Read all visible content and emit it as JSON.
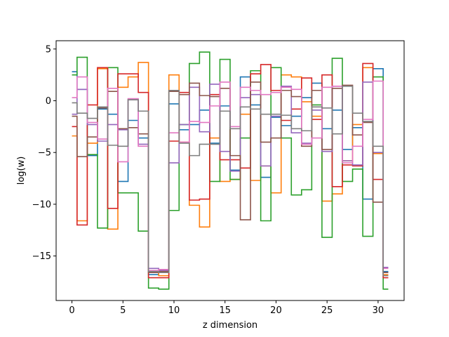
{
  "chart_data": {
    "type": "line",
    "drawstyle": "steps-mid",
    "title": "",
    "xlabel": "z dimension",
    "ylabel": "log(w)",
    "xlim": [
      -1.55,
      32.55
    ],
    "ylim": [
      -19.3,
      5.8
    ],
    "xticks": [
      0,
      5,
      10,
      15,
      20,
      25,
      30
    ],
    "yticks": [
      -15,
      -10,
      -5,
      0,
      5
    ],
    "grid": false,
    "legend": "none",
    "x": [
      0,
      1,
      2,
      3,
      4,
      5,
      6,
      7,
      8,
      9,
      10,
      11,
      12,
      13,
      14,
      15,
      16,
      17,
      18,
      19,
      20,
      21,
      22,
      23,
      24,
      25,
      26,
      27,
      28,
      29,
      30,
      31
    ],
    "series": [
      {
        "color": "#1f77b4",
        "values": [
          2.8,
          1.1,
          -5.3,
          -0.8,
          -1.3,
          -7.8,
          -1.9,
          -3.6,
          -16.8,
          -16.6,
          -0.3,
          -2.8,
          -2.3,
          -0.9,
          -4.1,
          -0.5,
          -6.7,
          2.3,
          -0.4,
          -7.4,
          -1.6,
          -2.4,
          -1.5,
          0.3,
          1.7,
          -2.7,
          -0.9,
          -4.7,
          -2.6,
          -9.5,
          3.1,
          -16.5
        ]
      },
      {
        "color": "#ff7f0e",
        "values": [
          -3.4,
          -11.6,
          -4.1,
          3.1,
          -12.4,
          1.3,
          2.3,
          3.7,
          -16.4,
          -16.9,
          2.5,
          -4.0,
          -10.1,
          -12.2,
          -3.6,
          -7.8,
          -7.6,
          -1.3,
          -7.7,
          -6.3,
          -8.9,
          2.5,
          2.3,
          -0.1,
          -1.5,
          -9.7,
          -9.0,
          -5.8,
          -2.3,
          3.2,
          -5.1,
          -16.8
        ]
      },
      {
        "color": "#2ca02c",
        "values": [
          2.5,
          4.2,
          -5.2,
          -12.3,
          3.2,
          -8.9,
          -8.9,
          -12.6,
          -18.1,
          -18.2,
          -10.6,
          -2.3,
          3.6,
          4.7,
          -7.8,
          4.0,
          -7.6,
          -3.6,
          2.9,
          -11.6,
          3.2,
          -3.6,
          -9.1,
          -8.6,
          -0.4,
          -13.2,
          4.1,
          -7.8,
          -6.6,
          -13.1,
          2.3,
          -18.2
        ]
      },
      {
        "color": "#d62728",
        "values": [
          -2.5,
          -12.0,
          -0.4,
          3.2,
          -10.4,
          2.6,
          2.6,
          0.8,
          -17.1,
          -17.1,
          -3.9,
          0.8,
          -9.6,
          -9.5,
          0.6,
          -5.7,
          -5.7,
          -6.5,
          2.6,
          3.5,
          1.0,
          -1.9,
          -0.8,
          2.2,
          -1.8,
          2.5,
          -8.3,
          -6.2,
          -6.3,
          3.6,
          -7.6,
          -17.1
        ]
      },
      {
        "color": "#9467bd",
        "values": [
          -1.3,
          1.1,
          -2.3,
          -3.9,
          -2.3,
          -2.8,
          0.1,
          -4.2,
          -16.2,
          -16.4,
          -6.0,
          -2.3,
          1.3,
          -3.0,
          1.6,
          -4.9,
          -6.8,
          0.3,
          0.6,
          -6.3,
          -1.5,
          1.4,
          -3.1,
          -4.1,
          -0.9,
          -4.9,
          1.4,
          -5.8,
          -6.2,
          1.8,
          -5.0,
          -16.1
        ]
      },
      {
        "color": "#8c564b",
        "values": [
          -1.5,
          -5.4,
          -3.5,
          -0.7,
          0.9,
          -2.7,
          -2.6,
          -3.2,
          -16.6,
          -16.5,
          0.9,
          0.6,
          1.7,
          0.5,
          0.4,
          1.2,
          -5.3,
          -11.5,
          1.8,
          -4.0,
          -3.6,
          1.0,
          0.4,
          -4.4,
          1.0,
          -4.7,
          1.2,
          1.5,
          -3.3,
          -2.1,
          -9.8,
          -16.6
        ]
      },
      {
        "color": "#e377c2",
        "values": [
          0.3,
          2.3,
          -2.1,
          -3.7,
          1.2,
          -5.9,
          0.2,
          -4.4,
          -16.4,
          -16.3,
          -3.1,
          -4.0,
          -2.0,
          -2.1,
          -0.5,
          1.8,
          -2.5,
          1.3,
          1.0,
          0.6,
          0.8,
          1.3,
          1.1,
          -4.2,
          -3.6,
          1.3,
          1.4,
          -6.0,
          -4.4,
          -1.8,
          1.9,
          -16.2
        ]
      },
      {
        "color": "#7f7f7f",
        "values": [
          -0.2,
          -1.2,
          -1.7,
          -0.6,
          -4.3,
          -4.4,
          0.1,
          -1.0,
          -16.5,
          -16.6,
          1.0,
          -4.1,
          -5.3,
          -4.2,
          -4.2,
          -1.0,
          -2.7,
          -0.6,
          -0.8,
          -1.3,
          -1.3,
          -1.4,
          -2.7,
          -2.9,
          -0.6,
          -0.7,
          -3.2,
          1.4,
          -1.2,
          -2.0,
          -4.4,
          -16.9
        ]
      }
    ]
  }
}
